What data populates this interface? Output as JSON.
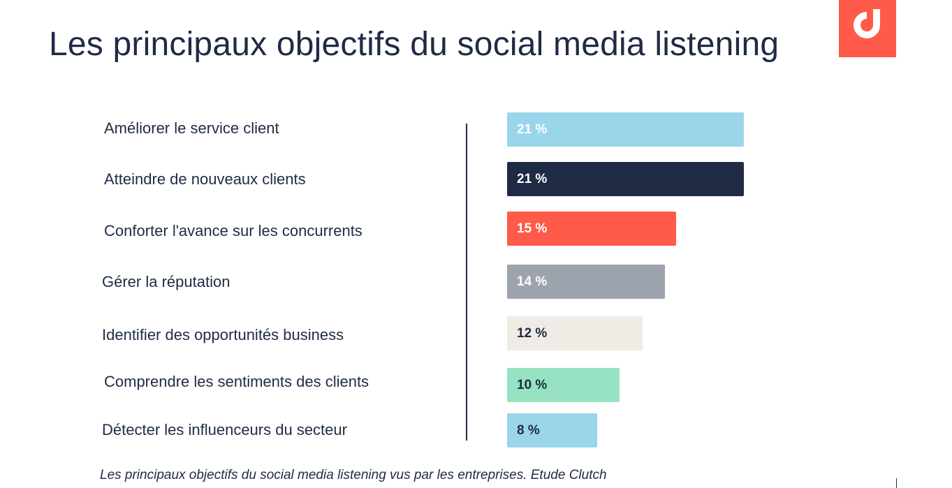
{
  "title": "Les principaux objectifs du social media listening",
  "caption": "Les principaux objectifs du social media listening vus par les entreprises. Etude Clutch",
  "logo": {
    "icon": "d-logo-icon",
    "background": "#ff5a4a",
    "foreground": "#ffffff"
  },
  "chart_data": {
    "type": "bar",
    "orientation": "horizontal",
    "unit": "%",
    "categories": [
      "Améliorer le service client",
      "Atteindre de nouveaux clients",
      "Conforter l'avance sur les concurrents",
      "Gérer la réputation",
      "Identifier des opportunités business",
      "Comprendre les sentiments des clients",
      "Détecter les influenceurs du secteur"
    ],
    "values": [
      21,
      21,
      15,
      14,
      12,
      10,
      8
    ],
    "value_labels": [
      "21 %",
      "21 %",
      "15 %",
      "14 %",
      "12 %",
      "10 %",
      "8 %"
    ],
    "bar_colors": [
      "#9ad5ea",
      "#1f2b45",
      "#ff5a4a",
      "#9ca3ad",
      "#f0ebe4",
      "#97e2c2",
      "#9ad5ea"
    ],
    "label_colors": [
      "#ffffff",
      "#ffffff",
      "#ffffff",
      "#ffffff",
      "#1f2b45",
      "#1f2b45",
      "#1f2b45"
    ],
    "grid": false,
    "legend": "none"
  }
}
